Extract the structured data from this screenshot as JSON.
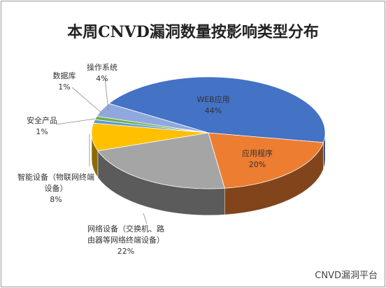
{
  "chart_data": {
    "type": "pie3d",
    "title": "本周CNVD漏洞数量按影响类型分布",
    "categories": [
      "WEB应用",
      "应用程序",
      "网络设备（交换机、路由器等网络终端设备）",
      "智能设备（物联网终端设备）",
      "安全产品",
      "数据库",
      "操作系统"
    ],
    "values": [
      44,
      20,
      22,
      8,
      1,
      1,
      4
    ],
    "value_labels": [
      "44%",
      "20%",
      "22%",
      "8%",
      "1%",
      "1%",
      "4%"
    ],
    "colors": [
      "#4472c4",
      "#ed7d31",
      "#a5a5a5",
      "#ffc000",
      "#5b9bd5",
      "#70ad47",
      "#8fa8de"
    ]
  },
  "watermark": "CNVD漏洞平台"
}
